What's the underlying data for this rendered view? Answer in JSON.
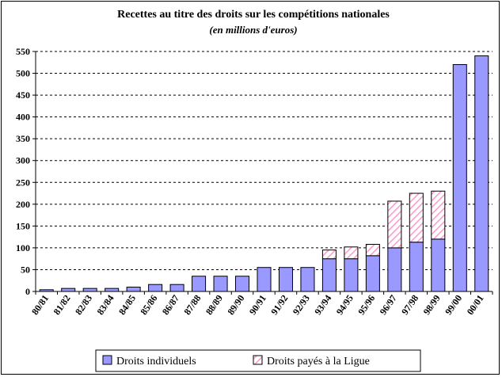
{
  "chart_data": {
    "type": "bar",
    "stacked": true,
    "title": "Recettes au titre des droits sur les compétitions nationales",
    "subtitle": "(en millions d'euros)",
    "categories": [
      "80/81",
      "81/82",
      "82/83",
      "83/84",
      "84/85",
      "85/86",
      "86/87",
      "87/88",
      "88/89",
      "89/90",
      "90/91",
      "91/92",
      "92/93",
      "93/94",
      "94/95",
      "95/96",
      "96/97",
      "97/98",
      "98/99",
      "99/00",
      "00/01"
    ],
    "series": [
      {
        "name": "Droits individuels",
        "color": "#9999ff",
        "pattern": "solid",
        "values": [
          4,
          7,
          7,
          7,
          10,
          16,
          16,
          35,
          35,
          35,
          55,
          55,
          55,
          75,
          75,
          82,
          100,
          113,
          120,
          520,
          540
        ]
      },
      {
        "name": "Droits payés à la Ligue",
        "color": "#ff99cc",
        "pattern": "diagonal-hatch",
        "values": [
          0,
          0,
          0,
          0,
          0,
          0,
          0,
          0,
          0,
          0,
          0,
          0,
          0,
          20,
          27,
          26,
          107,
          112,
          110,
          0,
          0
        ]
      }
    ],
    "ylim": [
      0,
      550
    ],
    "yticks": [
      0,
      50,
      100,
      150,
      200,
      250,
      300,
      350,
      400,
      450,
      500,
      550
    ],
    "grid": "horizontal-dashed",
    "legend_position": "bottom"
  }
}
